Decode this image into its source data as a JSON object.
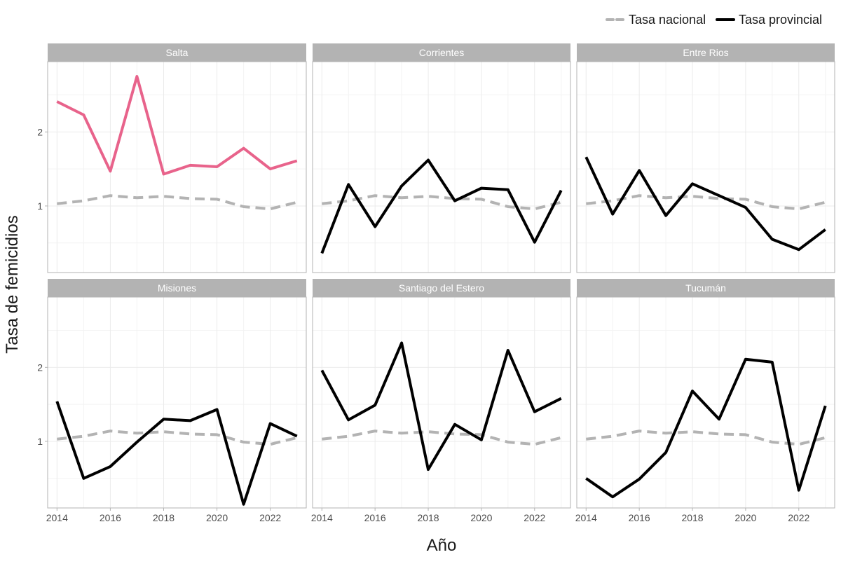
{
  "chart_data": {
    "type": "line",
    "xlabel": "Año",
    "ylabel": "Tasa de femicidios",
    "x": [
      2014,
      2015,
      2016,
      2017,
      2018,
      2019,
      2020,
      2021,
      2022,
      2023
    ],
    "xticks": [
      2014,
      2016,
      2018,
      2020,
      2022
    ],
    "yticks": [
      1,
      2
    ],
    "ylim": [
      0.1,
      2.95
    ],
    "xlim": [
      2013.65,
      2023.35
    ],
    "grid": true,
    "legend": {
      "position": "top-right",
      "entries": [
        {
          "label": "Tasa nacional",
          "color": "#b3b3b3",
          "style": "dashed"
        },
        {
          "label": "Tasa provincial",
          "color": "#000000",
          "style": "solid"
        }
      ]
    },
    "national_series": {
      "name": "Tasa nacional",
      "values": [
        1.03,
        1.07,
        1.14,
        1.11,
        1.13,
        1.1,
        1.09,
        0.99,
        0.96,
        1.05
      ]
    },
    "panels": [
      {
        "province": "Salta",
        "color": "#e8638b",
        "values": [
          2.41,
          2.23,
          1.47,
          2.75,
          1.43,
          1.55,
          1.53,
          1.78,
          1.5,
          1.61
        ]
      },
      {
        "province": "Corrientes",
        "color": "#000000",
        "values": [
          0.36,
          1.29,
          0.72,
          1.27,
          1.62,
          1.07,
          1.24,
          1.22,
          0.51,
          1.21
        ]
      },
      {
        "province": "Entre Rios",
        "color": "#000000",
        "values": [
          1.66,
          0.89,
          1.48,
          0.87,
          1.3,
          1.14,
          0.98,
          0.55,
          0.41,
          0.68
        ]
      },
      {
        "province": "Misiones",
        "color": "#000000",
        "values": [
          1.54,
          0.5,
          0.66,
          0.99,
          1.3,
          1.28,
          1.43,
          0.15,
          1.24,
          1.07
        ]
      },
      {
        "province": "Santiago del Estero",
        "color": "#000000",
        "values": [
          1.96,
          1.29,
          1.49,
          2.33,
          0.62,
          1.23,
          1.02,
          2.23,
          1.4,
          1.58
        ]
      },
      {
        "province": "Tucumán",
        "color": "#000000",
        "values": [
          0.5,
          0.25,
          0.49,
          0.85,
          1.68,
          1.3,
          2.11,
          2.07,
          0.34,
          1.48
        ]
      }
    ]
  }
}
